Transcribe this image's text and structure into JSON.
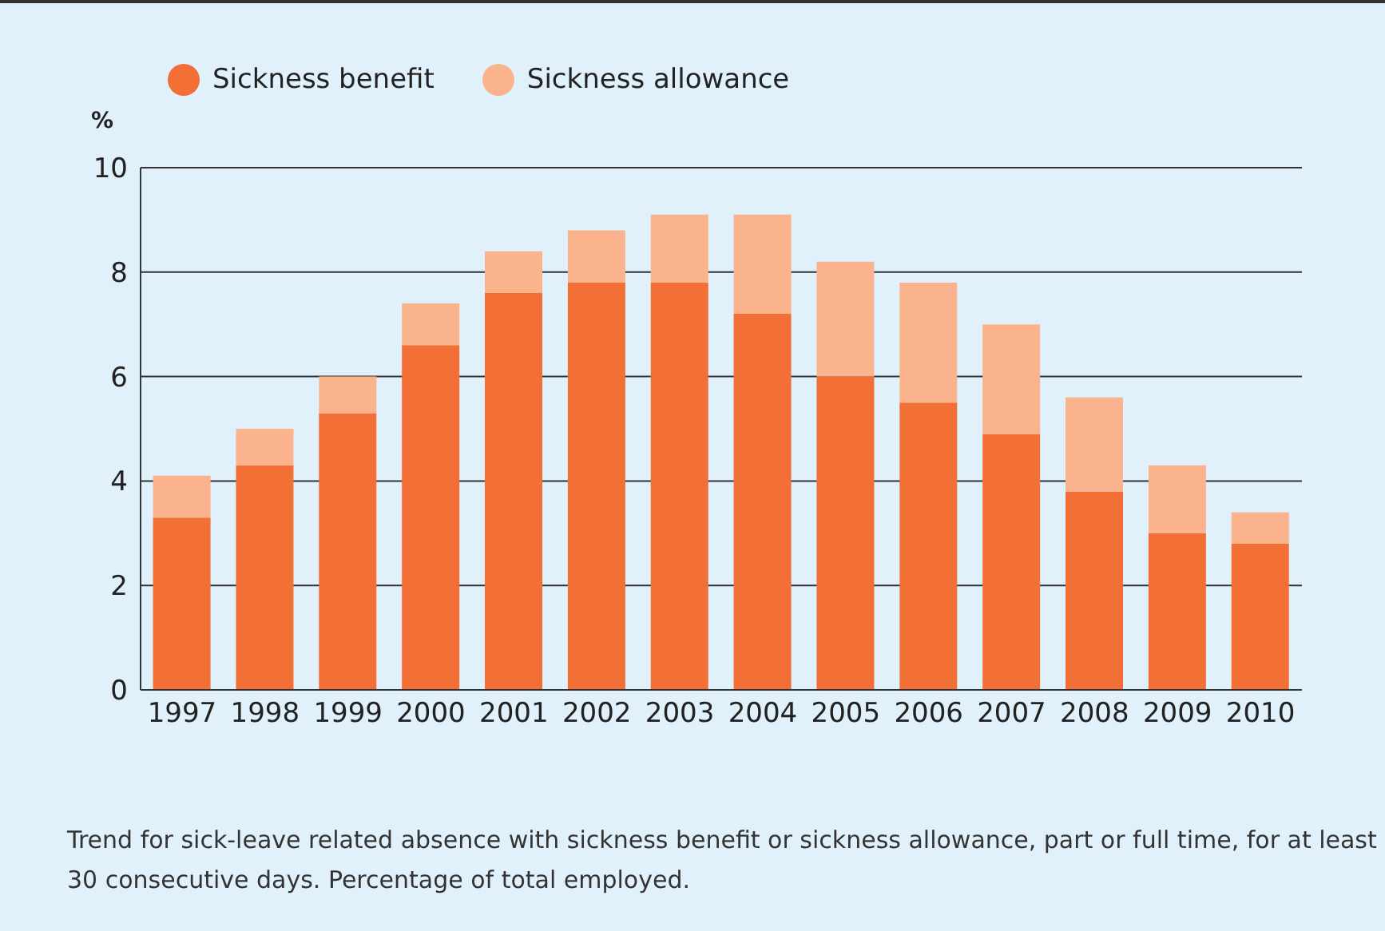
{
  "chart_data": {
    "type": "bar",
    "stacked": true,
    "ylabel": "%",
    "categories": [
      "1997",
      "1998",
      "1999",
      "2000",
      "2001",
      "2002",
      "2003",
      "2004",
      "2005",
      "2006",
      "2007",
      "2008",
      "2009",
      "2010"
    ],
    "series": [
      {
        "name": "Sickness benefit",
        "color": "#f26f35",
        "values": [
          3.3,
          4.3,
          5.3,
          6.6,
          7.6,
          7.8,
          7.8,
          7.2,
          6.0,
          5.5,
          4.9,
          3.8,
          3.0,
          2.8
        ]
      },
      {
        "name": "Sickness allowance",
        "color": "#fbb38d",
        "values": [
          0.8,
          0.7,
          0.7,
          0.8,
          0.8,
          1.0,
          1.3,
          1.9,
          2.2,
          2.3,
          2.1,
          1.8,
          1.3,
          0.6
        ]
      }
    ],
    "ylim": [
      0,
      10
    ],
    "yticks": [
      0,
      2,
      4,
      6,
      8,
      10
    ],
    "grid": "y",
    "legend": "top left",
    "annotations": [
      "Trend for sick-leave related absence with sickness benefit or sickness allowance, part or full time, for at least 30 consecutive days. Percentage of total employed."
    ]
  }
}
